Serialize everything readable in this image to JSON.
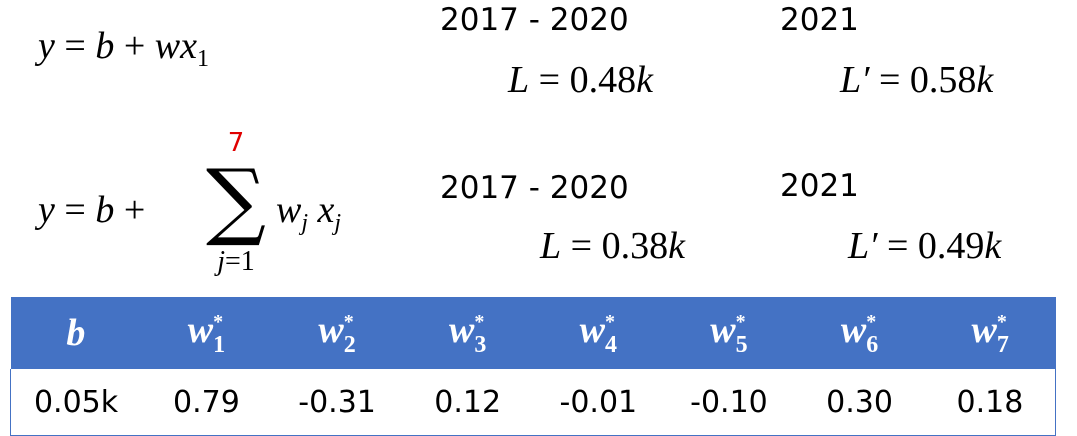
{
  "model1": {
    "eq_y": "y",
    "eq_b": "b",
    "eq_w": "w",
    "eq_x": "x",
    "eq_sub": "1",
    "train_years": "2017 - 2020",
    "train_L_symbol": "L",
    "train_L_value": "0.48",
    "test_year": "2021",
    "test_L_symbol": "L′",
    "test_L_value": "0.58",
    "unit": "k"
  },
  "model2": {
    "eq_y": "y",
    "eq_b": "b",
    "sum_upper": "7",
    "sum_lower_var": "j",
    "sum_lower_val": "1",
    "eq_w": "w",
    "eq_x": "x",
    "eq_sub": "j",
    "train_years": "2017 - 2020",
    "train_L_symbol": "L",
    "train_L_value": "0.38",
    "test_year": "2021",
    "test_L_symbol": "L′",
    "test_L_value": "0.49",
    "unit": "k"
  },
  "table": {
    "header_bg": "#4472c4",
    "headers": [
      {
        "sym": "b",
        "star": "",
        "sub": ""
      },
      {
        "sym": "w",
        "star": "*",
        "sub": "1"
      },
      {
        "sym": "w",
        "star": "*",
        "sub": "2"
      },
      {
        "sym": "w",
        "star": "*",
        "sub": "3"
      },
      {
        "sym": "w",
        "star": "*",
        "sub": "4"
      },
      {
        "sym": "w",
        "star": "*",
        "sub": "5"
      },
      {
        "sym": "w",
        "star": "*",
        "sub": "6"
      },
      {
        "sym": "w",
        "star": "*",
        "sub": "7"
      }
    ],
    "values": [
      "0.05k",
      "0.79",
      "-0.31",
      "0.12",
      "-0.01",
      "-0.10",
      "0.30",
      "0.18"
    ]
  }
}
